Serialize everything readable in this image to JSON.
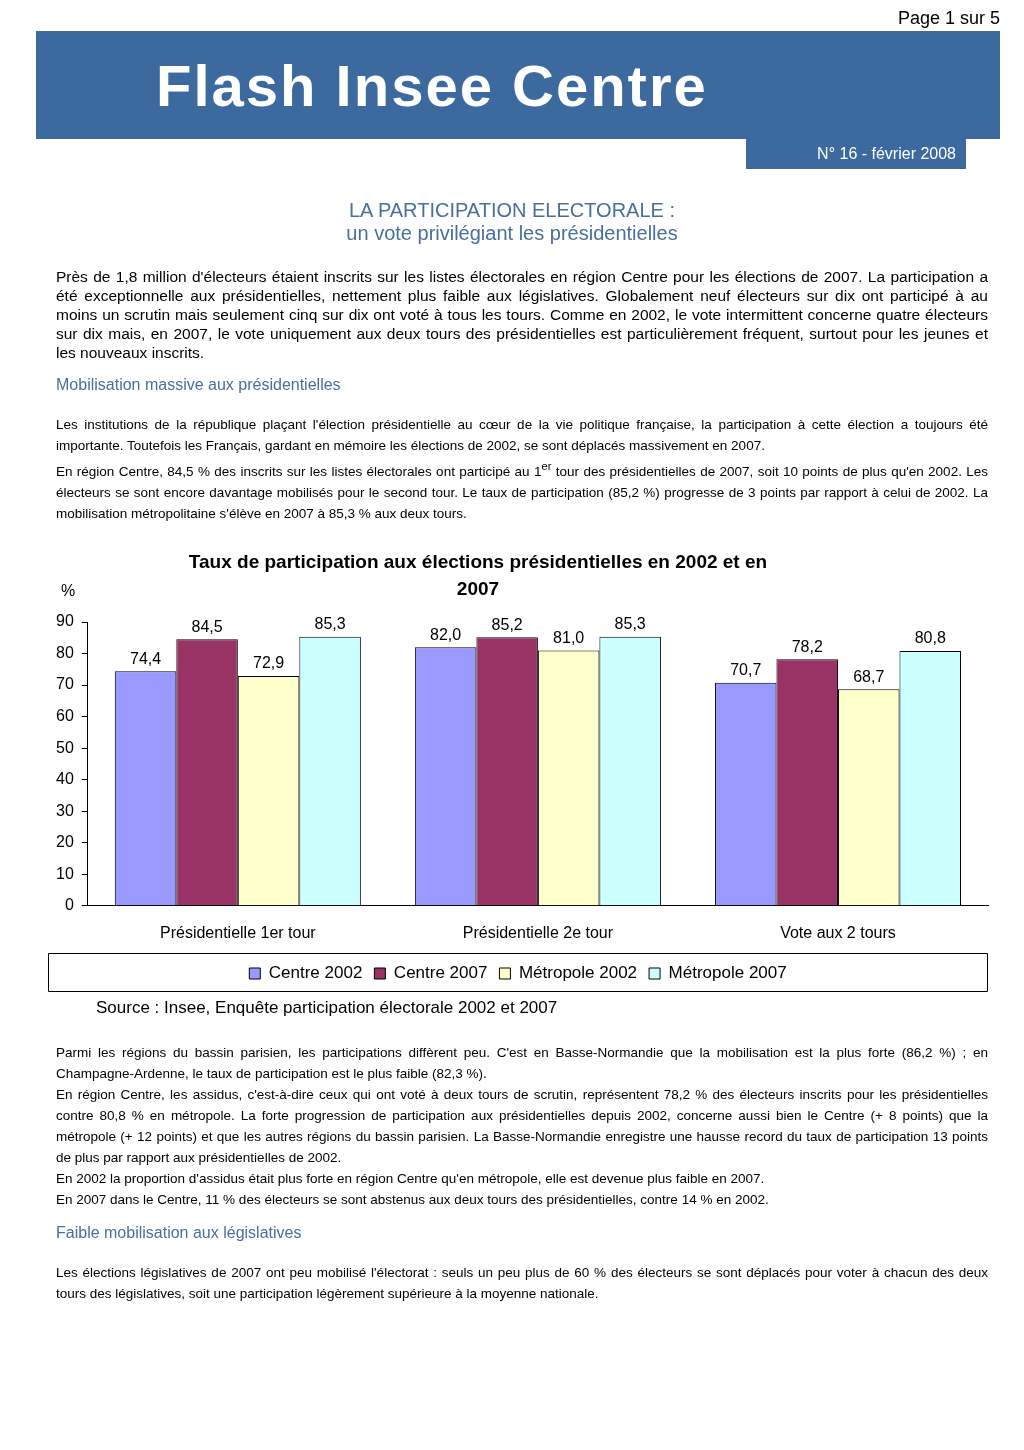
{
  "chart_data": {
    "type": "bar",
    "title": "Taux de participation aux élections présidentielles en 2002 et en 2007",
    "ylabel": "%",
    "categories": [
      "Présidentielle 1er tour",
      "Présidentielle 2e tour",
      "Vote aux 2 tours"
    ],
    "series": [
      {
        "name": "Centre 2002",
        "color": "#9999ff",
        "values": [
          74.4,
          82.0,
          70.7
        ],
        "value_labels": [
          "74,4",
          "82,0",
          "70,7"
        ]
      },
      {
        "name": "Centre 2007",
        "color": "#993366",
        "values": [
          84.5,
          85.2,
          78.2
        ],
        "value_labels": [
          "84,5",
          "85,2",
          "78,2"
        ]
      },
      {
        "name": "Métropole 2002",
        "color": "#ffffcc",
        "values": [
          72.9,
          81.0,
          68.7
        ],
        "value_labels": [
          "72,9",
          "81,0",
          "68,7"
        ]
      },
      {
        "name": "Métropole 2007",
        "color": "#ccffff",
        "values": [
          85.3,
          85.3,
          80.8
        ],
        "value_labels": [
          "85,3",
          "85,3",
          "80,8"
        ]
      }
    ],
    "ylim": [
      0,
      90
    ],
    "yticks": [
      0,
      10,
      20,
      30,
      40,
      50,
      60,
      70,
      80,
      90
    ],
    "grid": false,
    "legend": "bottom",
    "annotations": [
      "Page 1 sur 5",
      "Flash Insee Centre",
      "N° 16 - février 2008",
      "LA PARTICIPATION ELECTORALE :",
      "un vote privilégiant les présidentielles",
      "Près de 1,8 million d'électeurs étaient inscrits sur les listes électorales en région Centre pour les élections de 2007. La participation a été exceptionnelle aux présidentielles, nettement plus faible aux législatives. Globalement neuf électeurs sur dix ont participé à au moins un scrutin mais seulement cinq sur dix ont voté à tous les tours. Comme en 2002, le vote intermittent concerne quatre électeurs sur dix mais, en 2007, le vote uniquement aux deux tours des présidentielles est particulièrement fréquent, surtout pour les jeunes et les nouveaux inscrits.",
      "Mobilisation massive aux présidentielles",
      "Les institutions de la république plaçant l'élection présidentielle au cœur de la vie politique française, la participation à cette élection a toujours été importante. Toutefois les Français, gardant en mémoire les élections de 2002, se sont déplacés massivement en 2007.\nEn région Centre, 84,5 % des inscrits sur les listes électorales ont participé au 1$^{er}$ tour des présidentielles de 2007, soit 10 points de plus qu'en 2002. Les électeurs se sont encore davantage mobilisés pour le second tour. Le taux de participation (85,2 %) progresse de 3 points par rapport à celui de 2002. La mobilisation métropolitaine s'élève en 2007 à 85,3 % aux deux tours.",
      "Source : Insee, Enquête participation électorale 2002 et 2007",
      "Parmi les régions du bassin parisien, les participations diffèrent peu. C'est en Basse-Normandie que la mobilisation est la plus forte (86,2 %) ; en Champagne-Ardenne, le taux de participation est le plus faible (82,3 %).\nEn région Centre, les assidus, c'est-à-dire ceux qui ont voté à deux tours de scrutin, représentent 78,2 % des électeurs inscrits pour les présidentielles contre 80,8 % en métropole. La forte progression de participation aux présidentielles depuis 2002, concerne aussi bien le Centre (+ 8 points) que la métropole (+ 12 points) et que les autres régions du bassin parisien. La Basse-Normandie enregistre une hausse record du taux de participation 13 points de plus par rapport aux présidentielles de 2002.\nEn 2002 la proportion d'assidus était plus forte en région Centre qu'en métropole, elle est devenue plus faible en 2007.\nEn 2007 dans le Centre, 11 % des électeurs se sont abstenus aux deux tours des présidentielles, contre 14 % en 2002.",
      "Faible mobilisation aux législatives",
      "Les élections législatives de 2007 ont peu mobilisé l'électorat : seuls un peu plus de 60 % des électeurs se sont déplacés pour voter à chacun des deux tours des législatives, soit une participation légèrement supérieure à la moyenne nationale."
    ]
  }
}
